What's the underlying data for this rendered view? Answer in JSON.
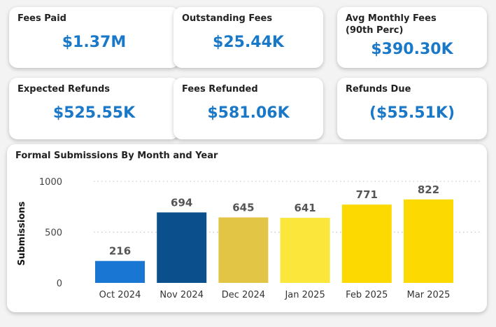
{
  "kpis": {
    "fees_paid": {
      "label": "Fees Paid",
      "value": "$1.37M"
    },
    "outstanding_fees": {
      "label": "Outstanding Fees",
      "value": "$25.44K"
    },
    "avg_monthly_fees": {
      "label": "Avg Monthly Fees (90th Perc)",
      "value": "$390.30K"
    },
    "expected_refunds": {
      "label": "Expected Refunds",
      "value": "$525.55K"
    },
    "fees_refunded": {
      "label": "Fees Refunded",
      "value": "$581.06K"
    },
    "refunds_due": {
      "label": "Refunds Due",
      "value": "($55.51K)"
    }
  },
  "colors": {
    "kpi_value": "#1a78c8",
    "gridline": "#bfbfbf"
  },
  "chart_data": {
    "type": "bar",
    "title": "Formal Submissions By Month and Year",
    "xlabel": "",
    "ylabel": "Submissions",
    "ylim": [
      0,
      1000
    ],
    "yticks": [
      0,
      500,
      1000
    ],
    "grid": true,
    "categories": [
      "Oct 2024",
      "Nov 2024",
      "Dec 2024",
      "Jan 2025",
      "Feb 2025",
      "Mar 2025"
    ],
    "values": [
      216,
      694,
      645,
      641,
      771,
      822
    ],
    "bar_colors": [
      "#1976d2",
      "#0b4f8c",
      "#e3c545",
      "#fbe63c",
      "#fcd900",
      "#fcd900"
    ],
    "data_labels": true
  }
}
